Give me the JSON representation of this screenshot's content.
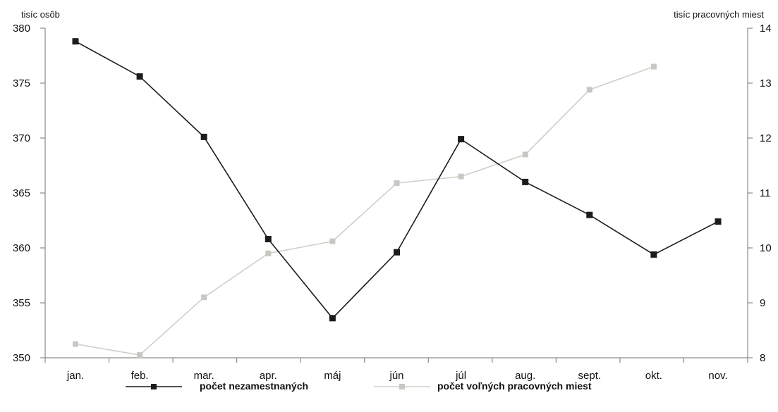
{
  "colors": {
    "unemployed": "#1c1c1c",
    "vacancies": "#cfcfcb",
    "vacancy_marker": "#c8c8c2",
    "axis": "#8c8c8c"
  },
  "chart_data": {
    "type": "line",
    "categories": [
      "jan.",
      "feb.",
      "mar.",
      "apr.",
      "máj",
      "jún",
      "júl",
      "aug.",
      "sept.",
      "okt.",
      "nov."
    ],
    "y_left": {
      "label": "tisíc osôb",
      "min": 350,
      "max": 380,
      "ticks": [
        350,
        355,
        360,
        365,
        370,
        375,
        380
      ]
    },
    "y_right": {
      "label": "tisíc pracovných miest",
      "min": 8,
      "max": 14,
      "ticks": [
        8,
        9,
        10,
        11,
        12,
        13,
        14
      ]
    },
    "series": [
      {
        "name": "počet nezamestnaných",
        "axis": "left",
        "marker": "square",
        "values": [
          378.8,
          375.6,
          370.1,
          360.8,
          353.6,
          359.6,
          369.9,
          366.0,
          363.0,
          359.4,
          362.4
        ]
      },
      {
        "name": "počet voľných pracovných miest",
        "axis": "right",
        "marker": "square",
        "values": [
          8.25,
          8.05,
          9.1,
          9.9,
          10.12,
          11.18,
          11.3,
          11.7,
          12.88,
          13.3,
          null
        ]
      }
    ],
    "legend_position": "bottom",
    "grid": false
  }
}
